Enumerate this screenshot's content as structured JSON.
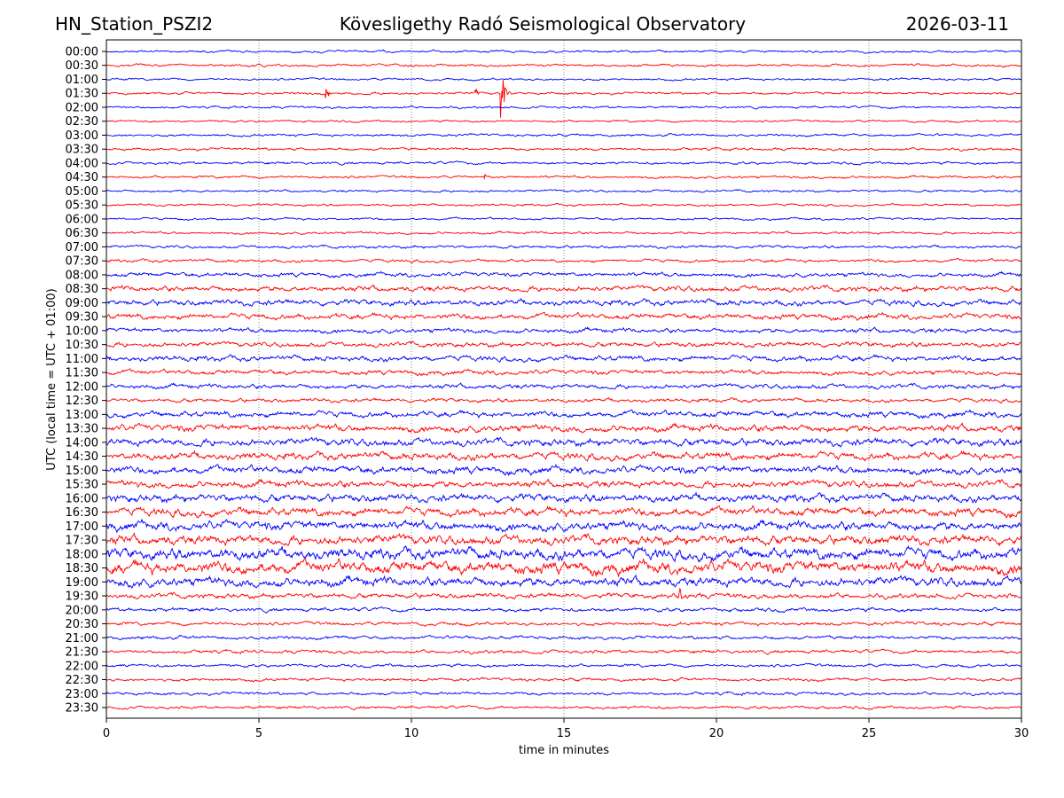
{
  "header": {
    "station": "HN_Station_PSZI2",
    "observatory": "Kövesligethy Radó Seismological Observatory",
    "date": "2026-03-11"
  },
  "chart_data": {
    "type": "line",
    "title": "Kövesligethy Radó Seismological Observatory",
    "xlabel": "time in minutes",
    "ylabel": "UTC (local time = UTC + 01:00)",
    "xlim": [
      0,
      30
    ],
    "xticks": [
      "0",
      "5",
      "10",
      "15",
      "20",
      "25",
      "30"
    ],
    "grid": "vertical dotted at 5-minute intervals",
    "row_labels": [
      "00:00",
      "00:30",
      "01:00",
      "01:30",
      "02:00",
      "02:30",
      "03:00",
      "03:30",
      "04:00",
      "04:30",
      "05:00",
      "05:30",
      "06:00",
      "06:30",
      "07:00",
      "07:30",
      "08:00",
      "08:30",
      "09:00",
      "09:30",
      "10:00",
      "10:30",
      "11:00",
      "11:30",
      "12:00",
      "12:30",
      "13:00",
      "13:30",
      "14:00",
      "14:30",
      "15:00",
      "15:30",
      "16:00",
      "16:30",
      "17:00",
      "17:30",
      "18:00",
      "18:30",
      "19:00",
      "19:30",
      "20:00",
      "20:30",
      "21:00",
      "21:30",
      "22:00",
      "22:30",
      "23:00",
      "23:30"
    ],
    "colors": [
      "#0000ff",
      "#ff0000"
    ],
    "relative_noise_amplitude": [
      1.2,
      1.3,
      1.2,
      1.3,
      1.2,
      1.1,
      1.3,
      1.4,
      1.4,
      1.3,
      1.2,
      1.2,
      1.2,
      1.3,
      1.5,
      1.6,
      2.2,
      2.8,
      3.0,
      2.8,
      2.4,
      2.5,
      2.8,
      2.4,
      2.4,
      2.0,
      3.0,
      3.6,
      3.8,
      3.8,
      3.8,
      3.5,
      4.0,
      4.2,
      4.6,
      4.8,
      5.8,
      6.2,
      4.8,
      2.6,
      2.0,
      1.8,
      1.8,
      1.8,
      1.6,
      1.6,
      1.6,
      1.5
    ],
    "events": [
      {
        "row": "01:30",
        "minute": 7.2,
        "amplitude": 7
      },
      {
        "row": "01:30",
        "minute": 12.1,
        "amplitude": 6
      },
      {
        "row": "01:30",
        "minute": 12.95,
        "amplitude": 30
      },
      {
        "row": "04:30",
        "minute": 12.4,
        "amplitude": 3
      },
      {
        "row": "19:30",
        "minute": 18.8,
        "amplitude": 10
      }
    ]
  }
}
